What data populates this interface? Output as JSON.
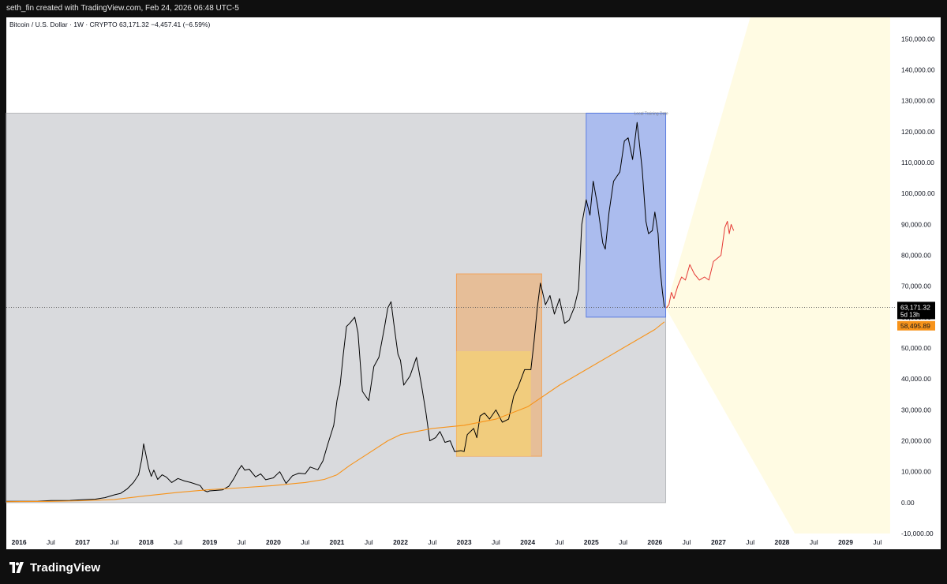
{
  "header": {
    "attribution": "seth_fin created with TradingView.com, Feb 24, 2026 06:48 UTC-5"
  },
  "symbol_line": "Bitcoin / U.S. Dollar · 1W · CRYPTO  63,171.32  −4,457.41 (−6.59%)",
  "footer": {
    "brand": "TradingView"
  },
  "colors": {
    "price_line": "#000000",
    "ma_line": "#f7931a",
    "projection_line": "#e53935",
    "gray_box": "#d9dadd",
    "orange_box": "#e8b98c",
    "yellow_box": "#f2cf78",
    "blue_box": "#a9bbee",
    "cone": "#fffbe3",
    "price_label_bg": "#000000",
    "ma_label_bg": "#f7931a"
  },
  "chart_data": {
    "type": "line",
    "title": "",
    "subtitle": "Bitcoin / U.S. Dollar · 1W · CRYPTO",
    "xlabel": "",
    "ylabel": "",
    "ylim": [
      -10000,
      157000
    ],
    "xlim": [
      2015.8,
      2029.8
    ],
    "grid": false,
    "y_ticks": [
      "150,000.00",
      "140,000.00",
      "130,000.00",
      "120,000.00",
      "110,000.00",
      "100,000.00",
      "90,000.00",
      "80,000.00",
      "70,000.00",
      "60,000.00",
      "50,000.00",
      "40,000.00",
      "30,000.00",
      "20,000.00",
      "10,000.00",
      "0.00",
      "-10,000.00"
    ],
    "x_ticks": [
      {
        "label": "2016",
        "x": 2016.0
      },
      {
        "label": "Jul",
        "x": 2016.5
      },
      {
        "label": "2017",
        "x": 2017.0
      },
      {
        "label": "Jul",
        "x": 2017.5
      },
      {
        "label": "2018",
        "x": 2018.0
      },
      {
        "label": "Jul",
        "x": 2018.5
      },
      {
        "label": "2019",
        "x": 2019.0
      },
      {
        "label": "Jul",
        "x": 2019.5
      },
      {
        "label": "2020",
        "x": 2020.0
      },
      {
        "label": "Jul",
        "x": 2020.5
      },
      {
        "label": "2021",
        "x": 2021.0
      },
      {
        "label": "Jul",
        "x": 2021.5
      },
      {
        "label": "2022",
        "x": 2022.0
      },
      {
        "label": "Jul",
        "x": 2022.5
      },
      {
        "label": "2023",
        "x": 2023.0
      },
      {
        "label": "Jul",
        "x": 2023.5
      },
      {
        "label": "2024",
        "x": 2024.0
      },
      {
        "label": "Jul",
        "x": 2024.5
      },
      {
        "label": "2025",
        "x": 2025.0
      },
      {
        "label": "Jul",
        "x": 2025.5
      },
      {
        "label": "2026",
        "x": 2026.0
      },
      {
        "label": "Jul",
        "x": 2026.5
      },
      {
        "label": "2027",
        "x": 2027.0
      },
      {
        "label": "Jul",
        "x": 2027.5
      },
      {
        "label": "2028",
        "x": 2028.0
      },
      {
        "label": "Jul",
        "x": 2028.5
      },
      {
        "label": "2029",
        "x": 2029.0
      },
      {
        "label": "Jul",
        "x": 2029.5
      }
    ],
    "series": [
      {
        "values": [
          [
            2015.8,
            400
          ],
          [
            2016.0,
            430
          ],
          [
            2016.3,
            450
          ],
          [
            2016.5,
            650
          ],
          [
            2016.8,
            700
          ],
          [
            2017.0,
            950
          ],
          [
            2017.2,
            1100
          ],
          [
            2017.35,
            1600
          ],
          [
            2017.5,
            2500
          ],
          [
            2017.6,
            3000
          ],
          [
            2017.7,
            4400
          ],
          [
            2017.8,
            6500
          ],
          [
            2017.88,
            9000
          ],
          [
            2017.93,
            14000
          ],
          [
            2017.96,
            19000
          ],
          [
            2018.0,
            15000
          ],
          [
            2018.04,
            11000
          ],
          [
            2018.08,
            8500
          ],
          [
            2018.12,
            10500
          ],
          [
            2018.18,
            7500
          ],
          [
            2018.25,
            9000
          ],
          [
            2018.32,
            8200
          ],
          [
            2018.4,
            6500
          ],
          [
            2018.5,
            7800
          ],
          [
            2018.6,
            7000
          ],
          [
            2018.7,
            6500
          ],
          [
            2018.85,
            5500
          ],
          [
            2018.9,
            4000
          ],
          [
            2018.96,
            3500
          ],
          [
            2019.0,
            3800
          ],
          [
            2019.2,
            4100
          ],
          [
            2019.3,
            5300
          ],
          [
            2019.38,
            7800
          ],
          [
            2019.45,
            10500
          ],
          [
            2019.5,
            12000
          ],
          [
            2019.55,
            10500
          ],
          [
            2019.62,
            10800
          ],
          [
            2019.72,
            8300
          ],
          [
            2019.8,
            9300
          ],
          [
            2019.88,
            7400
          ],
          [
            2020.0,
            8000
          ],
          [
            2020.1,
            10000
          ],
          [
            2020.2,
            6200
          ],
          [
            2020.3,
            8700
          ],
          [
            2020.4,
            9500
          ],
          [
            2020.5,
            9300
          ],
          [
            2020.58,
            11500
          ],
          [
            2020.7,
            10600
          ],
          [
            2020.78,
            13500
          ],
          [
            2020.85,
            18500
          ],
          [
            2020.95,
            25000
          ],
          [
            2021.0,
            33000
          ],
          [
            2021.05,
            38000
          ],
          [
            2021.1,
            48000
          ],
          [
            2021.15,
            57000
          ],
          [
            2021.2,
            58000
          ],
          [
            2021.28,
            60000
          ],
          [
            2021.33,
            55000
          ],
          [
            2021.4,
            36000
          ],
          [
            2021.5,
            33000
          ],
          [
            2021.58,
            44000
          ],
          [
            2021.66,
            47000
          ],
          [
            2021.75,
            57000
          ],
          [
            2021.8,
            63000
          ],
          [
            2021.85,
            65000
          ],
          [
            2021.9,
            57000
          ],
          [
            2021.96,
            48000
          ],
          [
            2022.0,
            46000
          ],
          [
            2022.05,
            38000
          ],
          [
            2022.15,
            41000
          ],
          [
            2022.25,
            47000
          ],
          [
            2022.33,
            38000
          ],
          [
            2022.4,
            29000
          ],
          [
            2022.46,
            20000
          ],
          [
            2022.55,
            21000
          ],
          [
            2022.62,
            23000
          ],
          [
            2022.7,
            19500
          ],
          [
            2022.78,
            20000
          ],
          [
            2022.85,
            16500
          ],
          [
            2022.95,
            16800
          ],
          [
            2023.0,
            16500
          ],
          [
            2023.05,
            22000
          ],
          [
            2023.15,
            24000
          ],
          [
            2023.2,
            21000
          ],
          [
            2023.25,
            28000
          ],
          [
            2023.32,
            29000
          ],
          [
            2023.4,
            27000
          ],
          [
            2023.5,
            30000
          ],
          [
            2023.6,
            26000
          ],
          [
            2023.7,
            27000
          ],
          [
            2023.78,
            34500
          ],
          [
            2023.85,
            37500
          ],
          [
            2023.95,
            43000
          ],
          [
            2024.05,
            43000
          ],
          [
            2024.1,
            52000
          ],
          [
            2024.15,
            63000
          ],
          [
            2024.2,
            71000
          ],
          [
            2024.28,
            64000
          ],
          [
            2024.35,
            67000
          ],
          [
            2024.42,
            61000
          ],
          [
            2024.5,
            66000
          ],
          [
            2024.58,
            58000
          ],
          [
            2024.65,
            59000
          ],
          [
            2024.73,
            63000
          ],
          [
            2024.8,
            69000
          ],
          [
            2024.85,
            90000
          ],
          [
            2024.92,
            98000
          ],
          [
            2024.98,
            93000
          ],
          [
            2025.03,
            104000
          ],
          [
            2025.1,
            96000
          ],
          [
            2025.18,
            84000
          ],
          [
            2025.22,
            82000
          ],
          [
            2025.28,
            94000
          ],
          [
            2025.35,
            104000
          ],
          [
            2025.45,
            107000
          ],
          [
            2025.52,
            117000
          ],
          [
            2025.58,
            118000
          ],
          [
            2025.65,
            111000
          ],
          [
            2025.72,
            123000
          ],
          [
            2025.8,
            108000
          ],
          [
            2025.86,
            91000
          ],
          [
            2025.9,
            87000
          ],
          [
            2025.96,
            88000
          ],
          [
            2026.0,
            94000
          ],
          [
            2026.05,
            87000
          ],
          [
            2026.08,
            76000
          ],
          [
            2026.12,
            68000
          ],
          [
            2026.15,
            63171
          ]
        ]
      },
      {
        "values": [
          [
            2015.8,
            300
          ],
          [
            2016.5,
            400
          ],
          [
            2017.0,
            600
          ],
          [
            2017.5,
            1000
          ],
          [
            2018.0,
            2200
          ],
          [
            2018.5,
            3300
          ],
          [
            2019.0,
            4200
          ],
          [
            2019.5,
            4800
          ],
          [
            2020.0,
            5500
          ],
          [
            2020.5,
            6500
          ],
          [
            2020.8,
            7500
          ],
          [
            2021.0,
            9000
          ],
          [
            2021.2,
            12000
          ],
          [
            2021.5,
            16000
          ],
          [
            2021.8,
            20000
          ],
          [
            2022.0,
            22000
          ],
          [
            2022.5,
            24000
          ],
          [
            2023.0,
            25000
          ],
          [
            2023.5,
            27000
          ],
          [
            2024.0,
            31000
          ],
          [
            2024.5,
            38000
          ],
          [
            2025.0,
            44000
          ],
          [
            2025.5,
            50000
          ],
          [
            2026.0,
            56000
          ],
          [
            2026.15,
            58496
          ]
        ]
      },
      {
        "values": [
          [
            2026.18,
            63000
          ],
          [
            2026.22,
            64000
          ],
          [
            2026.26,
            68000
          ],
          [
            2026.3,
            66000
          ],
          [
            2026.36,
            70000
          ],
          [
            2026.42,
            73000
          ],
          [
            2026.48,
            72000
          ],
          [
            2026.55,
            77000
          ],
          [
            2026.62,
            74000
          ],
          [
            2026.7,
            72000
          ],
          [
            2026.78,
            73000
          ],
          [
            2026.85,
            72000
          ],
          [
            2026.92,
            78000
          ],
          [
            2026.98,
            79000
          ],
          [
            2027.04,
            80000
          ],
          [
            2027.1,
            89000
          ],
          [
            2027.14,
            91000
          ],
          [
            2027.17,
            87000
          ],
          [
            2027.2,
            90000
          ],
          [
            2027.24,
            88000
          ]
        ]
      }
    ],
    "regions": [
      {
        "kind": "gray",
        "x": [
          2015.8,
          2026.17
        ],
        "y": [
          0,
          126000
        ]
      },
      {
        "kind": "orange",
        "x": [
          2022.88,
          2024.22
        ],
        "y": [
          15000,
          74000
        ]
      },
      {
        "kind": "yellow",
        "x": [
          2022.88,
          2024.05
        ],
        "y": [
          15000,
          49000
        ]
      },
      {
        "kind": "blue",
        "x": [
          2024.92,
          2026.17
        ],
        "y": [
          60000,
          126000
        ]
      }
    ],
    "cone": {
      "origin": [
        2026.17,
        63000
      ],
      "upper_end": [
        2027.5,
        157000
      ],
      "lower_end": [
        2028.2,
        -10000
      ],
      "right": 2029.7
    },
    "annotations": [
      {
        "text": "Local Training Date",
        "x": 2026.17,
        "y": 125000
      }
    ],
    "current_price": {
      "value": 63171.32,
      "label": "63,171.32",
      "countdown": "5d 13h"
    },
    "ma_price": {
      "value": 58495.89,
      "label": "58,495.89"
    }
  }
}
